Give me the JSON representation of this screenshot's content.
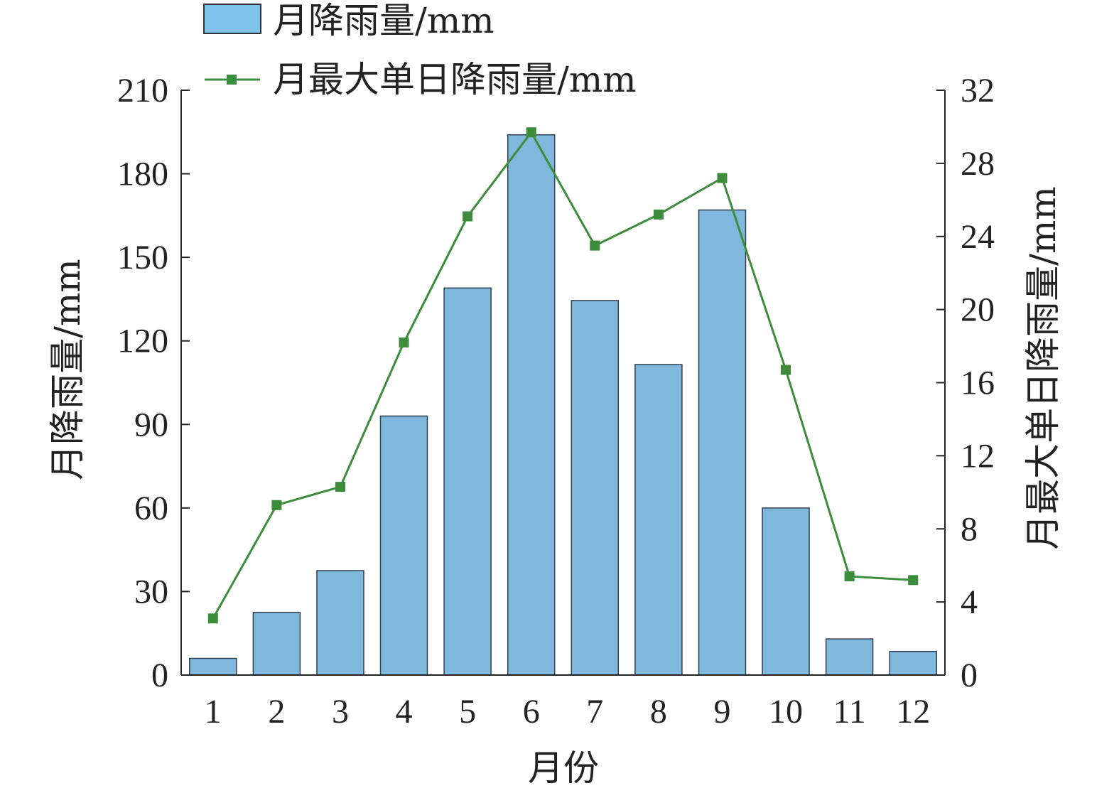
{
  "chart_data": {
    "type": "bar+line",
    "categories": [
      "1",
      "2",
      "3",
      "4",
      "5",
      "6",
      "7",
      "8",
      "9",
      "10",
      "11",
      "12"
    ],
    "series": [
      {
        "name": "月降雨量/mm",
        "type": "bar",
        "axis": "left",
        "color": "#7fb8dc",
        "values": [
          6,
          22.5,
          37.5,
          93,
          139,
          194,
          134.5,
          111.5,
          167,
          60,
          13,
          8.5
        ]
      },
      {
        "name": "月最大单日降雨量/mm",
        "type": "line",
        "axis": "right",
        "color": "#3c8c3c",
        "values": [
          3.1,
          9.3,
          10.3,
          18.2,
          25.1,
          29.7,
          23.5,
          25.2,
          27.2,
          16.7,
          5.4,
          5.2
        ]
      }
    ],
    "xlabel": "月份",
    "ylabel": "月降雨量/mm",
    "y2label": "月最大单日降雨量/mm",
    "ylim": [
      0,
      210
    ],
    "y2lim": [
      0,
      32
    ],
    "yticks": [
      "0",
      "30",
      "60",
      "90",
      "120",
      "150",
      "180",
      "210"
    ],
    "y2ticks": [
      "0",
      "4",
      "8",
      "12",
      "16",
      "20",
      "24",
      "28",
      "32"
    ],
    "legend_position": "top-left",
    "grid": false
  }
}
